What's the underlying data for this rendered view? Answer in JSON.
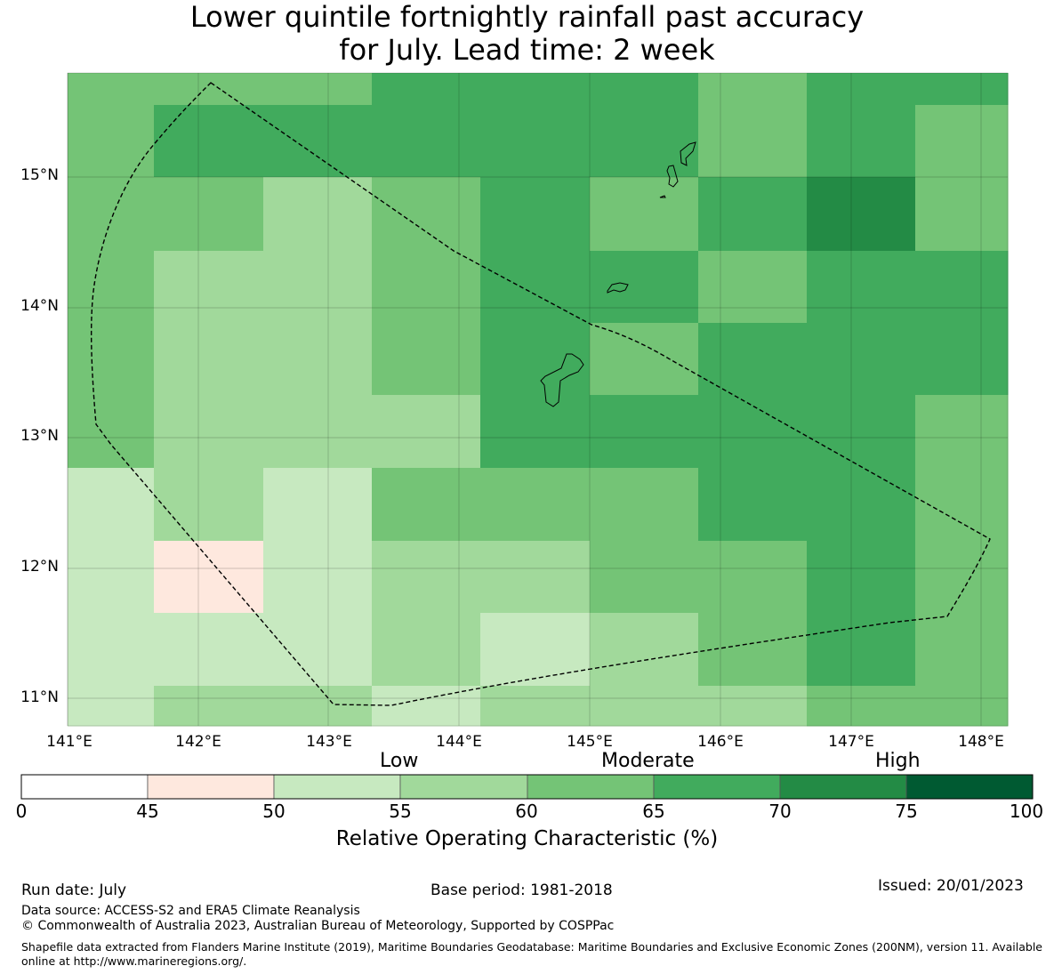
{
  "title": {
    "line1": "Lower quintile fortnightly rainfall past accuracy",
    "line2": "for July. Lead time: 2 week"
  },
  "map": {
    "lat_labels": [
      "15°N",
      "14°N",
      "13°N",
      "12°N",
      "11°N"
    ],
    "lon_labels": [
      "141°E",
      "142°E",
      "143°E",
      "144°E",
      "145°E",
      "146°E",
      "147°E",
      "148°E"
    ],
    "cell_values": [
      [
        62,
        62,
        62,
        67,
        67,
        67,
        62,
        67,
        67
      ],
      [
        62,
        67,
        67,
        67,
        67,
        67,
        62,
        67,
        62
      ],
      [
        62,
        62,
        57,
        62,
        67,
        62,
        67,
        72,
        62
      ],
      [
        62,
        57,
        57,
        62,
        67,
        67,
        62,
        67,
        67
      ],
      [
        62,
        57,
        57,
        62,
        67,
        62,
        67,
        67,
        67
      ],
      [
        62,
        57,
        57,
        57,
        67,
        67,
        67,
        67,
        62
      ],
      [
        52,
        57,
        52,
        62,
        62,
        62,
        67,
        67,
        62
      ],
      [
        52,
        47,
        52,
        57,
        57,
        62,
        62,
        67,
        62
      ],
      [
        52,
        52,
        52,
        57,
        52,
        57,
        62,
        67,
        62
      ],
      [
        52,
        57,
        57,
        52,
        57,
        57,
        57,
        62,
        62
      ]
    ]
  },
  "legend": {
    "categories": [
      "Low",
      "Moderate",
      "High"
    ],
    "ticks": [
      "0",
      "45",
      "50",
      "55",
      "60",
      "65",
      "70",
      "75",
      "100"
    ],
    "colors": [
      "#ffffff",
      "#fee8de",
      "#c7e9c0",
      "#a1d99b",
      "#74c476",
      "#41ab5d",
      "#238b45",
      "#005a32"
    ],
    "label": "Relative Operating Characteristic (%)"
  },
  "footer": {
    "run_date": "Run date: July",
    "base_period": "Base period: 1981-2018",
    "issued": "Issued: 20/01/2023",
    "data_source": "Data source: ACCESS-S2 and ERA5 Climate Reanalysis",
    "copyright": "© Commonwealth of Australia 2023, Australian Bureau of Meteorology, Supported by COSPPac",
    "shapefile": "Shapefile data extracted from Flanders Marine Institute (2019), Maritime Boundaries Geodatabase: Maritime Boundaries and Exclusive Economic Zones (200NM), version 11. Available online at http://www.marineregions.org/."
  }
}
